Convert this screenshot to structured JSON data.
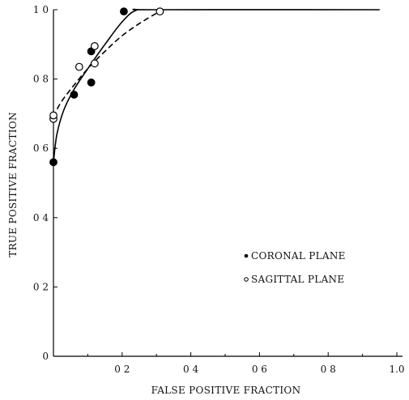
{
  "chart_data": {
    "type": "scatter",
    "title": "",
    "xlabel": "FALSE POSITIVE FRACTION",
    "ylabel": "TRUE POSITIVE FRACTION",
    "xlim": [
      0,
      1.0
    ],
    "ylim": [
      0,
      1.0
    ],
    "grid": false,
    "legend_position": "lower-right",
    "x_ticks": [
      {
        "value": 0.2,
        "label": "0 2"
      },
      {
        "value": 0.4,
        "label": "0 4"
      },
      {
        "value": 0.6,
        "label": "0 6"
      },
      {
        "value": 0.8,
        "label": "0 8"
      },
      {
        "value": 1.0,
        "label": "1.0"
      }
    ],
    "y_ticks": [
      {
        "value": 0,
        "label": "0"
      },
      {
        "value": 0.2,
        "label": "0 2"
      },
      {
        "value": 0.4,
        "label": "0 4"
      },
      {
        "value": 0.6,
        "label": "0 6"
      },
      {
        "value": 0.8,
        "label": "0 8"
      },
      {
        "value": 1.0,
        "label": "1 0"
      }
    ],
    "series": [
      {
        "name": "CORONAL PLANE",
        "marker": "filled-circle",
        "line_style": "solid",
        "color": "#000000",
        "points": [
          {
            "x": 0.0,
            "y": 0.56
          },
          {
            "x": 0.06,
            "y": 0.755
          },
          {
            "x": 0.11,
            "y": 0.79
          },
          {
            "x": 0.11,
            "y": 0.88
          },
          {
            "x": 0.205,
            "y": 0.995
          }
        ],
        "curve": [
          {
            "x": 0.0,
            "y": 0.56
          },
          {
            "x": 0.01,
            "y": 0.64
          },
          {
            "x": 0.03,
            "y": 0.71
          },
          {
            "x": 0.06,
            "y": 0.77
          },
          {
            "x": 0.1,
            "y": 0.83
          },
          {
            "x": 0.15,
            "y": 0.9
          },
          {
            "x": 0.2,
            "y": 0.965
          },
          {
            "x": 0.24,
            "y": 0.998
          },
          {
            "x": 0.3,
            "y": 1.0
          },
          {
            "x": 0.95,
            "y": 1.0
          }
        ]
      },
      {
        "name": "SAGITTAL PLANE",
        "marker": "open-circle",
        "line_style": "dashed",
        "color": "#000000",
        "points": [
          {
            "x": 0.0,
            "y": 0.685
          },
          {
            "x": 0.0,
            "y": 0.695
          },
          {
            "x": 0.075,
            "y": 0.835
          },
          {
            "x": 0.12,
            "y": 0.845
          },
          {
            "x": 0.12,
            "y": 0.895
          },
          {
            "x": 0.31,
            "y": 0.995
          }
        ],
        "curve": [
          {
            "x": 0.0,
            "y": 0.69
          },
          {
            "x": 0.02,
            "y": 0.73
          },
          {
            "x": 0.05,
            "y": 0.77
          },
          {
            "x": 0.1,
            "y": 0.83
          },
          {
            "x": 0.15,
            "y": 0.88
          },
          {
            "x": 0.2,
            "y": 0.925
          },
          {
            "x": 0.25,
            "y": 0.96
          },
          {
            "x": 0.3,
            "y": 0.99
          }
        ]
      }
    ]
  }
}
